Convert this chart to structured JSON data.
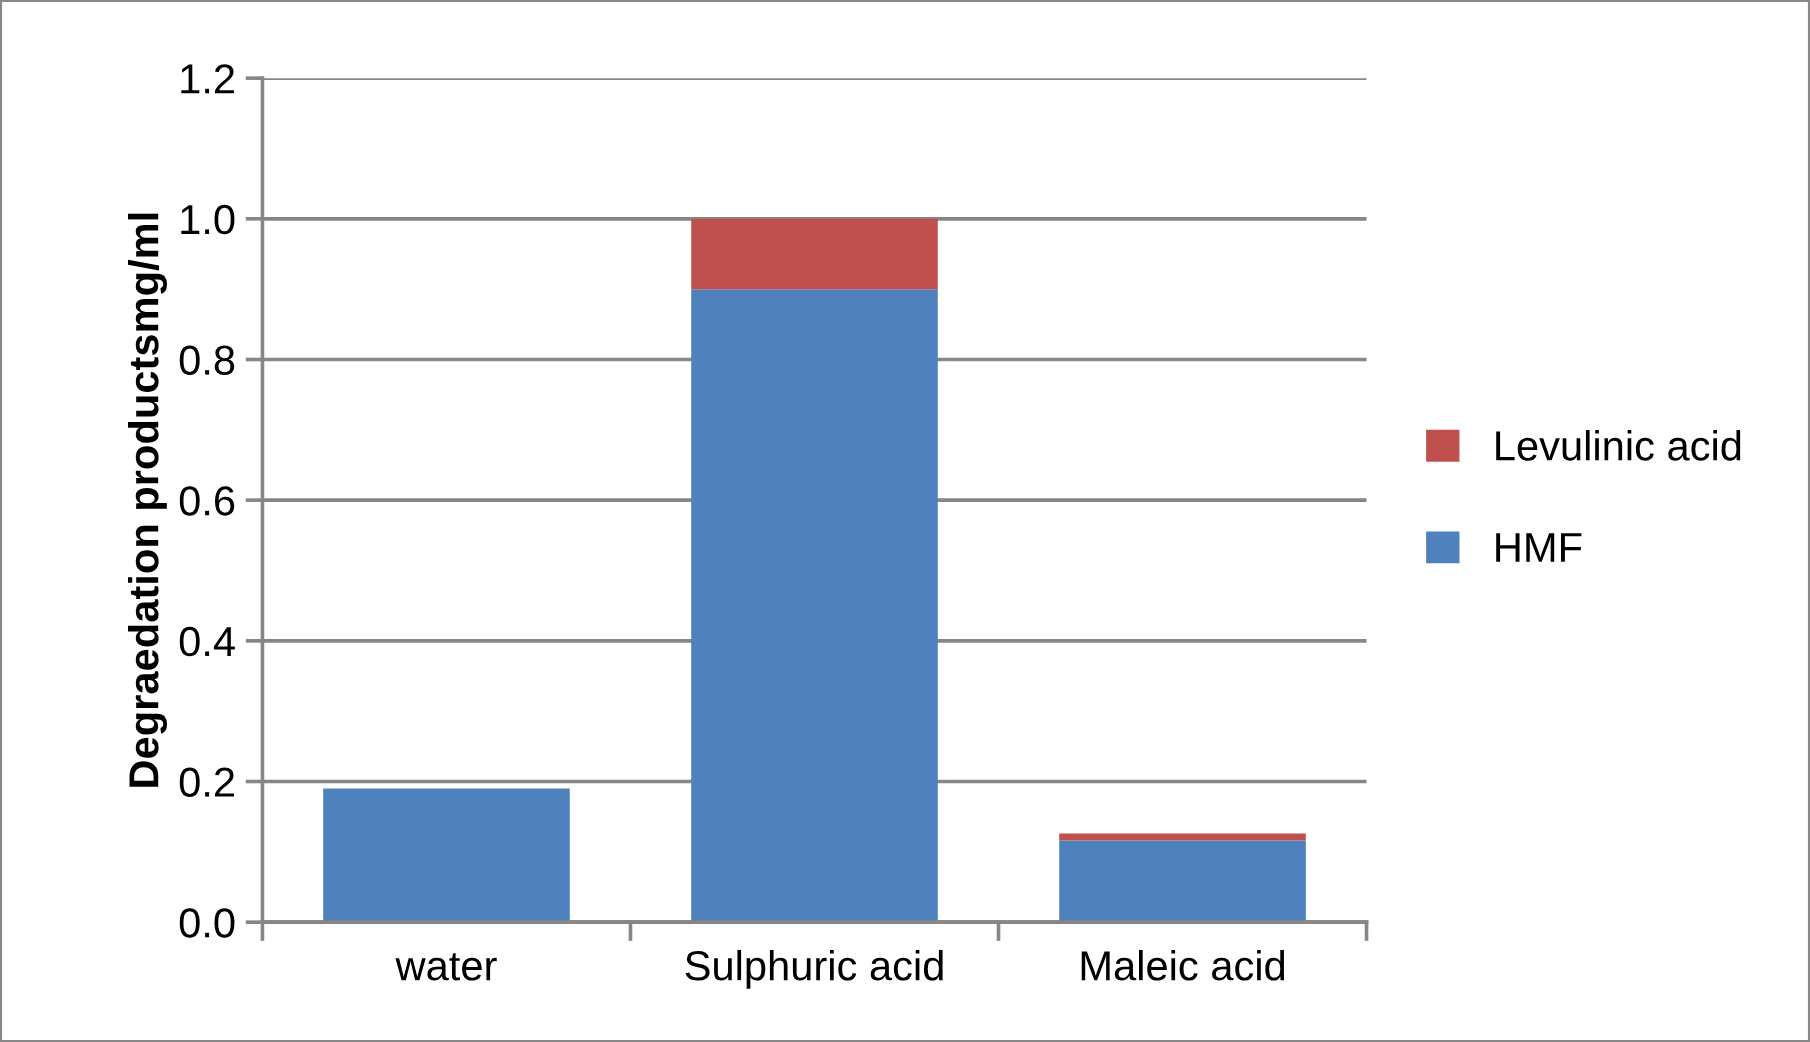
{
  "chart_data": {
    "type": "bar",
    "stacked": true,
    "ylabel": "Degraedation productsmg/ml",
    "categories": [
      "water",
      "Sulphuric acid",
      "Maleic acid"
    ],
    "series": [
      {
        "name": "HMF",
        "color": "#4f81bd",
        "values": [
          0.19,
          0.9,
          0.116
        ]
      },
      {
        "name": "Levulinic acid",
        "color": "#c0504d",
        "values": [
          0,
          0.1,
          0.01
        ]
      }
    ],
    "ylim": [
      0,
      1.2
    ],
    "yticks": [
      {
        "value": 0,
        "label": "0.0"
      },
      {
        "value": 0.2,
        "label": "0.2"
      },
      {
        "value": 0.4,
        "label": "0.4"
      },
      {
        "value": 0.6,
        "label": "0.6"
      },
      {
        "value": 0.8,
        "label": "0.8"
      },
      {
        "value": 1.0,
        "label": "1.0"
      },
      {
        "value": 1.2,
        "label": "1.2"
      }
    ],
    "grid": "y",
    "legend": "right"
  }
}
